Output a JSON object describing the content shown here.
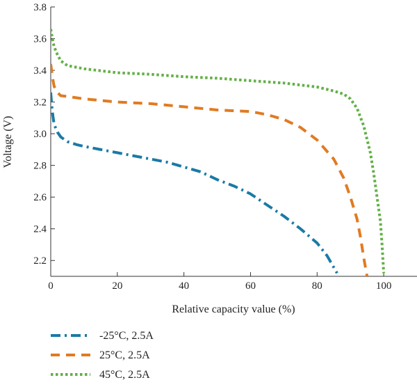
{
  "chart_data": {
    "type": "line",
    "title": "",
    "xlabel": "Relative capacity value (%)",
    "ylabel": "Voltage (V)",
    "xlim": [
      0,
      110
    ],
    "ylim": [
      2.1,
      3.8
    ],
    "xticks": [
      0,
      20,
      40,
      60,
      80,
      100
    ],
    "yticks": [
      2.2,
      2.4,
      2.6,
      2.8,
      3.0,
      3.2,
      3.4,
      3.6,
      3.8
    ],
    "x_tick_labels": [
      "0",
      "20",
      "40",
      "60",
      "80",
      "100"
    ],
    "y_tick_labels": [
      "2.2",
      "2.4",
      "2.6",
      "2.8",
      "3.0",
      "3.2",
      "3.4",
      "3.6",
      "3.8"
    ],
    "grid": false,
    "legend_position": "below",
    "series": [
      {
        "name": "-25°C, 2.5A",
        "color": "#1a7aa6",
        "dash": "dashdot",
        "x": [
          0,
          0.3,
          0.6,
          1,
          2,
          3,
          5,
          8,
          10,
          15,
          20,
          25,
          30,
          35,
          40,
          45,
          50,
          55,
          60,
          65,
          70,
          75,
          80,
          83,
          86
        ],
        "y": [
          3.26,
          3.18,
          3.12,
          3.06,
          3.01,
          2.98,
          2.95,
          2.93,
          2.92,
          2.9,
          2.88,
          2.86,
          2.84,
          2.82,
          2.79,
          2.76,
          2.71,
          2.67,
          2.62,
          2.55,
          2.48,
          2.4,
          2.31,
          2.23,
          2.12
        ]
      },
      {
        "name": "25°C, 2.5A",
        "color": "#e07b22",
        "dash": "dashed",
        "x": [
          0,
          0.5,
          1,
          2,
          3,
          5,
          10,
          20,
          30,
          40,
          50,
          60,
          65,
          70,
          75,
          80,
          85,
          88,
          90,
          92,
          93,
          94,
          95
        ],
        "y": [
          3.44,
          3.36,
          3.3,
          3.26,
          3.24,
          3.235,
          3.22,
          3.2,
          3.19,
          3.17,
          3.15,
          3.14,
          3.12,
          3.09,
          3.04,
          2.96,
          2.84,
          2.72,
          2.6,
          2.46,
          2.35,
          2.22,
          2.1
        ]
      },
      {
        "name": "45°C, 2.5A",
        "color": "#63b046",
        "dash": "dotted",
        "x": [
          0,
          0.5,
          1,
          2,
          3,
          5,
          10,
          20,
          30,
          40,
          50,
          60,
          70,
          80,
          85,
          88,
          90,
          92,
          94,
          96,
          97,
          98,
          99,
          99.5,
          100
        ],
        "y": [
          3.66,
          3.6,
          3.55,
          3.5,
          3.46,
          3.43,
          3.41,
          3.385,
          3.375,
          3.36,
          3.35,
          3.335,
          3.32,
          3.295,
          3.27,
          3.25,
          3.22,
          3.16,
          3.05,
          2.88,
          2.75,
          2.6,
          2.45,
          2.3,
          2.12
        ]
      }
    ]
  }
}
